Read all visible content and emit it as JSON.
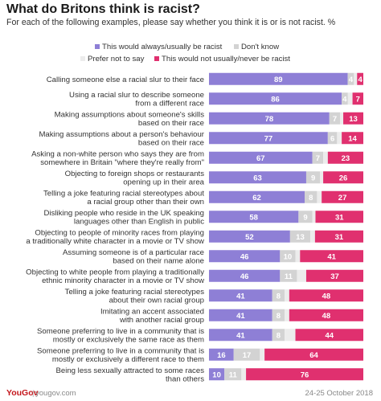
{
  "header": {
    "title": "What do Britons think is racist?",
    "subtitle": "For each of the following examples, please say whether you think it is or is not racist. %"
  },
  "colors": {
    "always": "#8e7fd6",
    "dont_know": "#d3d3d3",
    "prefer_not": "#ececec",
    "not_racist": "#e0306f"
  },
  "legend": {
    "always": "This would always/usually be racist",
    "dont_know": "Don't know",
    "prefer_not": "Prefer not to say",
    "not_racist": "This would not usually/never be racist"
  },
  "chart_data": {
    "type": "bar",
    "orientation": "horizontal",
    "stacked": true,
    "categories": [
      "Calling someone else a racial slur to their face",
      "Using a racial slur to describe someone from a different race",
      "Making assumptions about someone's skills based on their race",
      "Making assumptions about a person's behaviour based on their race",
      "Asking a non-white person who says they are from somewhere in Britain \"where they're really from\"",
      "Objecting to foreign shops or restaurants opening up in their area",
      "Telling a joke featuring racial stereotypes about a racial group other than their own",
      "Disliking people who reside in the UK speaking languages other than English in public",
      "Objecting to people of minority races from playing a traditionally white character in a movie or TV show",
      "Assuming someone is of a particular race based on their name alone",
      "Objecting to white people from playing a traditionally ethnic minority character in a movie or TV show",
      "Telling a joke featuring racial stereotypes about their own racial group",
      "Imitating an accent associated with another racial group",
      "Someone preferring to live in a community that is mostly or exclusively the same race as them",
      "Someone preferring to live in a community that is mostly or exclusively a different race to them",
      "Being less sexually attracted to some races than others"
    ],
    "category_lines": [
      [
        "Calling someone else a racial slur to their face"
      ],
      [
        "Using a racial slur to describe someone",
        "from a different race"
      ],
      [
        "Making assumptions about someone's skills",
        "based on their race"
      ],
      [
        "Making assumptions about a person's behaviour",
        "based on their race"
      ],
      [
        "Asking a non-white person who says they are from",
        "somewhere in Britain \"where they're really from\""
      ],
      [
        "Objecting to foreign shops or restaurants",
        "opening up in their area"
      ],
      [
        "Telling a joke featuring racial stereotypes about",
        "a racial group other than their own"
      ],
      [
        "Disliking people who reside in the UK speaking",
        "languages other than English in public"
      ],
      [
        "Objecting to people of minority races from playing",
        "a traditionally white character in a movie or TV show"
      ],
      [
        "Assuming someone is of a particular race",
        "based on their name alone"
      ],
      [
        "Objecting to white people from playing a traditionally",
        "ethnic minority character in a movie or TV show"
      ],
      [
        "Telling a joke featuring racial stereotypes",
        "about their own racial group"
      ],
      [
        "Imitating an accent associated",
        "with another racial group"
      ],
      [
        "Someone preferring to live in a community that is",
        "mostly or exclusively the same race as them"
      ],
      [
        "Someone preferring to live in a community that is",
        "mostly or exclusively a different race to them"
      ],
      [
        "Being less sexually attracted to some races",
        "than others"
      ]
    ],
    "series": [
      {
        "name": "This would always/usually be racist",
        "key": "always",
        "values": [
          89,
          86,
          78,
          77,
          67,
          63,
          62,
          58,
          52,
          46,
          46,
          41,
          41,
          41,
          16,
          10
        ]
      },
      {
        "name": "Don't know",
        "key": "dont_know",
        "values": [
          4,
          4,
          7,
          6,
          7,
          9,
          8,
          9,
          13,
          10,
          11,
          8,
          8,
          8,
          17,
          11
        ]
      },
      {
        "name": "Prefer not to say",
        "key": "prefer_not",
        "values": [
          2,
          3,
          2,
          3,
          3,
          2,
          3,
          2,
          3,
          3,
          6,
          3,
          3,
          7,
          3,
          3
        ]
      },
      {
        "name": "This would not usually/never be racist",
        "key": "not_racist",
        "values": [
          4,
          7,
          13,
          14,
          23,
          26,
          27,
          31,
          31,
          41,
          37,
          48,
          48,
          44,
          64,
          76
        ]
      }
    ],
    "ylim": [
      0,
      100
    ],
    "legend_position": "top"
  },
  "footer": {
    "brand": "YouGov",
    "site": "yougov.com",
    "date": "24-25 October 2018"
  }
}
